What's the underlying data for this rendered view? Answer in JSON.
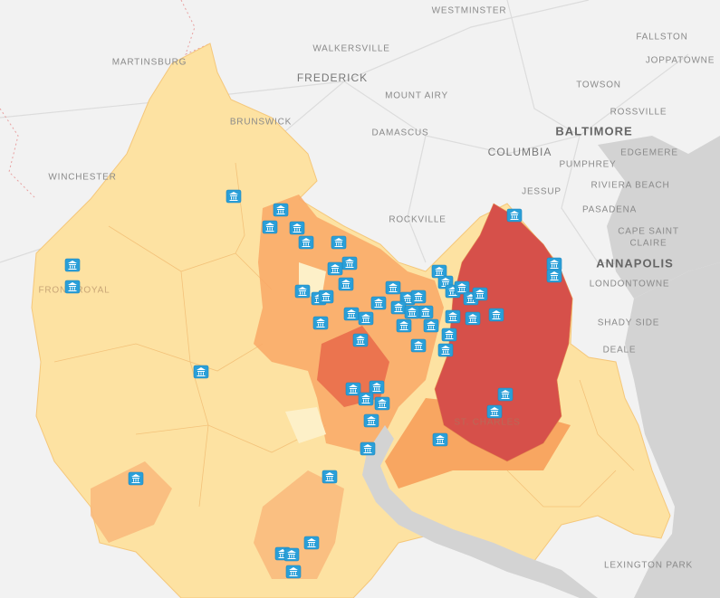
{
  "labels": [
    "WESTMINSTER",
    "FALLSTON",
    "JOPPATOWNE",
    "MARTINSBURG",
    "WALKERSVILLE",
    "FREDERICK",
    "MOUNT AIRY",
    "TOWSON",
    "ROSSVILLE",
    "BALTIMORE",
    "BRUNSWICK",
    "DAMASCUS",
    "COLUMBIA",
    "PUMPHREY",
    "EDGEMERE",
    "WINCHESTER",
    "JESSUP",
    "RIVIERA BEACH",
    "PASADENA",
    "ROCKVILLE",
    "CAPE SAINT",
    "CLAIRE",
    "ANNAPOLIS",
    "LONDONTOWNE",
    "SHADY SIDE",
    "DEALE",
    "ST. CHARLES",
    "LEXINGTON PARK",
    "FRONT ROYAL"
  ]
}
